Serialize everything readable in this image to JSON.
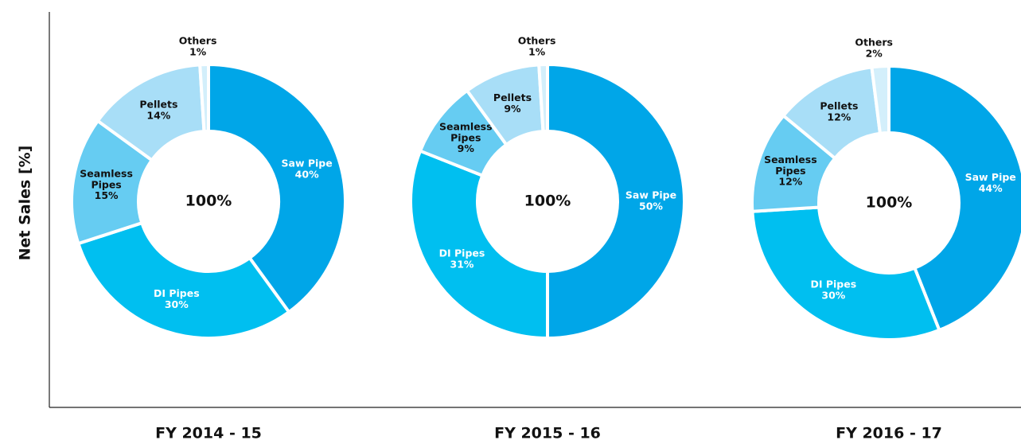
{
  "ylabel": "Net Sales [%]",
  "chart_data": [
    {
      "type": "pie",
      "title": "FY 2014 - 15",
      "center_label": "100%",
      "categories": [
        "Saw Pipe",
        "DI Pipes",
        "Seamless Pipes",
        "Pellets",
        "Others"
      ],
      "values": [
        40,
        30,
        15,
        14,
        1
      ],
      "value_labels": [
        "40%",
        "30%",
        "15%",
        "14%",
        "1%"
      ],
      "colors": [
        "#00a6e8",
        "#00bff0",
        "#66ccf2",
        "#a8def7",
        "#d3effb"
      ],
      "label_colors": [
        "#ffffff",
        "#ffffff",
        "#111111",
        "#111111",
        "#111111"
      ]
    },
    {
      "type": "pie",
      "title": "FY 2015 - 16",
      "center_label": "100%",
      "categories": [
        "Saw Pipe",
        "DI Pipes",
        "Seamless Pipes",
        "Pellets",
        "Others"
      ],
      "values": [
        50,
        31,
        9,
        9,
        1
      ],
      "value_labels": [
        "50%",
        "31%",
        "9%",
        "9%",
        "1%"
      ],
      "colors": [
        "#00a6e8",
        "#00bff0",
        "#66ccf2",
        "#a8def7",
        "#d3effb"
      ],
      "label_colors": [
        "#ffffff",
        "#ffffff",
        "#111111",
        "#111111",
        "#111111"
      ]
    },
    {
      "type": "pie",
      "title": "FY 2016 - 17",
      "center_label": "100%",
      "categories": [
        "Saw Pipe",
        "DI Pipes",
        "Seamless Pipes",
        "Pellets",
        "Others"
      ],
      "values": [
        44,
        30,
        12,
        12,
        2
      ],
      "value_labels": [
        "44%",
        "30%",
        "12%",
        "12%",
        "2%"
      ],
      "colors": [
        "#00a6e8",
        "#00bff0",
        "#66ccf2",
        "#a8def7",
        "#d3effb"
      ],
      "label_colors": [
        "#ffffff",
        "#ffffff",
        "#111111",
        "#111111",
        "#111111"
      ]
    }
  ]
}
